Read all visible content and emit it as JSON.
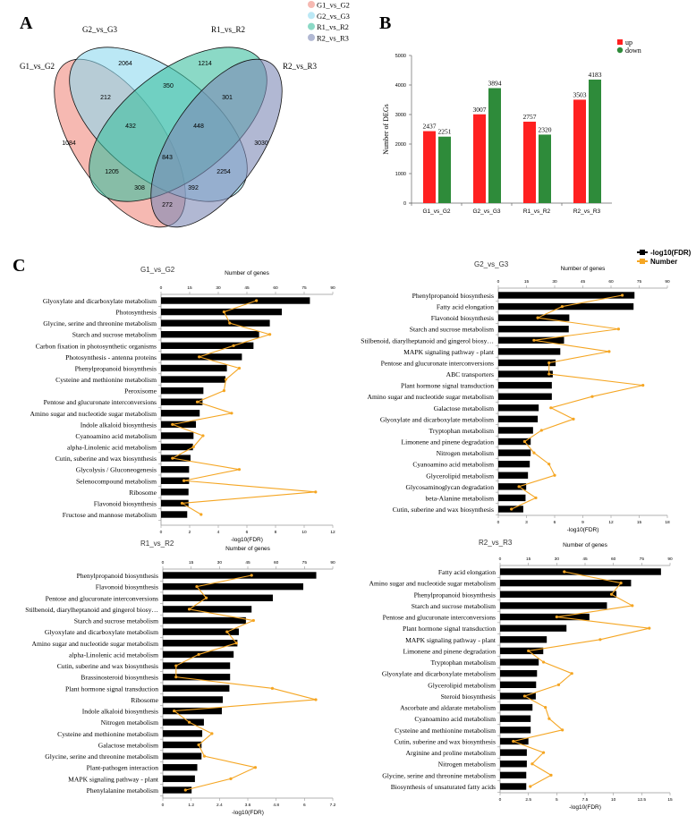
{
  "panel_labels": {
    "a": "A",
    "b": "B",
    "c": "C"
  },
  "legend_c": {
    "fdr": "-log10(FDR)",
    "number": "Number",
    "fdr_color": "#000000",
    "number_color": "#F5A623"
  },
  "chart_data": [
    {
      "type": "venn",
      "sets": [
        {
          "name": "G1_vs_G2",
          "color": "#F08A7E"
        },
        {
          "name": "G2_vs_G3",
          "color": "#8ED8EE"
        },
        {
          "name": "R1_vs_R2",
          "color": "#3EBFA0"
        },
        {
          "name": "R2_vs_R3",
          "color": "#7D88B5"
        }
      ],
      "regions": [
        {
          "sets": [
            "G2_vs_G3"
          ],
          "value": "2064"
        },
        {
          "sets": [
            "R1_vs_R2"
          ],
          "value": "1214"
        },
        {
          "sets": [
            "G1_vs_G2",
            "G2_vs_G3"
          ],
          "value": "212"
        },
        {
          "sets": [
            "G2_vs_G3",
            "R1_vs_R2"
          ],
          "value": "350"
        },
        {
          "sets": [
            "R1_vs_R2",
            "R2_vs_R3"
          ],
          "value": "301"
        },
        {
          "sets": [
            "G1_vs_G2",
            "G2_vs_G3",
            "R1_vs_R2"
          ],
          "value": "432"
        },
        {
          "sets": [
            "G2_vs_G3",
            "R1_vs_R2",
            "R2_vs_R3"
          ],
          "value": "448"
        },
        {
          "sets": [
            "G1_vs_G2"
          ],
          "value": "1084"
        },
        {
          "sets": [
            "G1_vs_G2",
            "G2_vs_G3",
            "R1_vs_R2",
            "R2_vs_R3"
          ],
          "value": "843"
        },
        {
          "sets": [
            "R2_vs_R3"
          ],
          "value": "3030"
        },
        {
          "sets": [
            "G1_vs_G2",
            "R1_vs_R2"
          ],
          "value": "1205"
        },
        {
          "sets": [
            "G2_vs_G3",
            "R2_vs_R3"
          ],
          "value": "2254"
        },
        {
          "sets": [
            "G1_vs_G2",
            "R1_vs_R2",
            "R2_vs_R3"
          ],
          "value": "308"
        },
        {
          "sets": [
            "G1_vs_G2",
            "G2_vs_G3",
            "R2_vs_R3"
          ],
          "value": "392"
        },
        {
          "sets": [
            "G1_vs_G2",
            "R2_vs_R3"
          ],
          "value": "272"
        }
      ]
    },
    {
      "type": "bar",
      "categories": [
        "G1_vs_G2",
        "G2_vs_G3",
        "R1_vs_R2",
        "R2_vs_R3"
      ],
      "series": [
        {
          "name": "up",
          "color": "#FF2020",
          "values": [
            2437,
            3007,
            2757,
            3503
          ]
        },
        {
          "name": "down",
          "color": "#2E8B3A",
          "values": [
            2251,
            3894,
            2320,
            4183
          ]
        }
      ],
      "ylabel": "Number of DEGs",
      "ylim": [
        0,
        5000
      ],
      "yticks": [
        "0",
        "1000",
        "2000",
        "3000",
        "4000",
        "5000"
      ],
      "legend": "top-right"
    },
    {
      "type": "bar+line",
      "title": "G1_vs_G2",
      "top_axis_label": "Number of genes",
      "xlabel": "-log10(FDR)",
      "fdr_ticks": [
        "0",
        "2",
        "4",
        "6",
        "8",
        "10",
        "12"
      ],
      "fdr_max": 12,
      "gene_ticks": [
        "0",
        "15",
        "30",
        "45",
        "60",
        "75",
        "90"
      ],
      "gene_max": 90,
      "categories": [
        "Glyoxylate and dicarboxylate metabolism",
        "Photosynthesis",
        "Glycine, serine and threonine metabolism",
        "Starch and sucrose metabolism",
        "Carbon fixation in photosynthetic organisms",
        "Photosynthesis - antenna proteins",
        "Phenylpropanoid biosynthesis",
        "Cysteine and methionine metabolism",
        "Peroxisome",
        "Pentose and glucuronate interconversions",
        "Amino sugar and nucleotide sugar metabolism",
        "Indole alkaloid biosynthesis",
        "Cyanoamino acid metabolism",
        "alpha-Linolenic acid metabolism",
        "Cutin, suberine and wax biosynthesis",
        "Glycolysis / Gluconeogenesis",
        "Selenocompound metabolism",
        "Ribosome",
        "Flavonoid biosynthesis",
        "Fructose and mannose metabolism"
      ],
      "fdr": [
        10.4,
        8.44,
        7.6,
        6.85,
        6.46,
        5.65,
        4.6,
        4.5,
        2.96,
        2.9,
        2.7,
        2.44,
        2.27,
        2.23,
        2.06,
        1.96,
        1.96,
        1.92,
        1.92,
        1.83
      ],
      "genes": [
        50,
        33,
        36,
        57,
        38,
        20,
        41,
        34,
        33,
        19,
        37,
        6,
        22,
        17,
        6,
        41,
        12,
        81,
        11,
        21
      ]
    },
    {
      "type": "bar+line",
      "title": "G2_vs_G3",
      "top_axis_label": "Number of genes",
      "xlabel": "-log10(FDR)",
      "fdr_ticks": [
        "0",
        "3",
        "6",
        "9",
        "12",
        "15",
        "18"
      ],
      "fdr_max": 18,
      "gene_ticks": [
        "0",
        "15",
        "30",
        "45",
        "60",
        "75",
        "90"
      ],
      "gene_max": 90,
      "categories": [
        "Phenylpropanoid biosynthesis",
        "Fatty acid elongation",
        "Flavonoid biosynthesis",
        "Starch and sucrose metabolism",
        "Stilbenoid, diarylheptanoid and gingerol biosy…",
        "MAPK signaling pathway - plant",
        "Pentose and glucuronate interconversions",
        "ABC transporters",
        "Plant hormone signal transduction",
        "Amino sugar and nucleotide sugar metabolism",
        "Galactose metabolism",
        "Glyoxylate and dicarboxylate metabolism",
        "Tryptophan metabolism",
        "Limonene and pinene degradation",
        "Nitrogen metabolism",
        "Cyanoamino acid metabolism",
        "Glycerolipid metabolism",
        "Glycosaminoglycan degradation",
        "beta-Alanine metabolism",
        "Cutin, suberine and wax biosynthesis"
      ],
      "fdr": [
        14.5,
        14.4,
        7.56,
        7.5,
        7.0,
        6.6,
        6.1,
        5.8,
        5.7,
        5.7,
        4.3,
        4.2,
        3.7,
        3.45,
        3.45,
        3.35,
        3.16,
        2.97,
        2.9,
        2.66
      ],
      "genes": [
        66,
        34,
        21,
        64,
        19,
        59,
        27,
        27,
        77,
        50,
        28,
        40,
        23,
        14,
        19,
        27,
        30,
        11,
        20,
        7
      ]
    },
    {
      "type": "bar+line",
      "title": "R1_vs_R2",
      "top_axis_label": "Number of genes",
      "xlabel": "-log10(FDR)",
      "fdr_ticks": [
        "0",
        "1.2",
        "2.4",
        "3.6",
        "4.8",
        "6",
        "7.2"
      ],
      "fdr_max": 7.2,
      "gene_ticks": [
        "0",
        "15",
        "30",
        "45",
        "60",
        "75",
        "90"
      ],
      "gene_max": 90,
      "categories": [
        "Phenylpropanoid biosynthesis",
        "Flavonoid biosynthesis",
        "Pentose and glucuronate interconversions",
        "Stilbenoid, diarylheptanoid and gingerol biosy…",
        "Starch and sucrose metabolism",
        "Glyoxylate and dicarboxylate metabolism",
        "Amino sugar and nucleotide sugar metabolism",
        "alpha-Linolenic acid metabolism",
        "Cutin, suberine and wax biosynthesis",
        "Brassinosteroid biosynthesis",
        "Plant hormone signal transduction",
        "Ribosome",
        "Indole alkaloid biosynthesis",
        "Nitrogen metabolism",
        "Cysteine and methionine metabolism",
        "Galactose metabolism",
        "Glycine, serine and threonine metabolism",
        "Plant-pathogen interaction",
        "MAPK signaling pathway - plant",
        "Phenylalanine metabolism"
      ],
      "fdr": [
        6.5,
        5.95,
        4.66,
        3.76,
        3.52,
        3.22,
        3.16,
        3.0,
        2.85,
        2.85,
        2.82,
        2.54,
        2.5,
        1.74,
        1.67,
        1.64,
        1.64,
        1.46,
        1.36,
        1.22
      ],
      "genes": [
        47,
        18,
        23,
        14,
        48,
        34,
        39,
        19,
        7,
        7,
        58,
        81,
        6,
        14,
        26,
        19,
        22,
        49,
        36,
        12
      ]
    },
    {
      "type": "bar+line",
      "title": "R2_vs_R3",
      "top_axis_label": "Number of genes",
      "xlabel": "-log10(FDR)",
      "fdr_ticks": [
        "0",
        "2.5",
        "5",
        "7.5",
        "10",
        "12.5",
        "15"
      ],
      "fdr_max": 15,
      "gene_ticks": [
        "0",
        "15",
        "30",
        "45",
        "60",
        "75",
        "90"
      ],
      "gene_max": 90,
      "categories": [
        "Fatty acid elongation",
        "Amino sugar and nucleotide sugar metabolism",
        "Phenylpropanoid biosynthesis",
        "Starch and sucrose metabolism",
        "Pentose and glucuronate interconversions",
        "Plant hormone signal transduction",
        "MAPK signaling pathway - plant",
        "Limonene and pinene degradation",
        "Tryptophan metabolism",
        "Glyoxylate and dicarboxylate metabolism",
        "Glycerolipid metabolism",
        "Steroid biosynthesis",
        "Ascorbate and aldarate metabolism",
        "Cyanoamino acid metabolism",
        "Cysteine and methionine metabolism",
        "Cutin, suberine and wax biosynthesis",
        "Arginine and proline metabolism",
        "Nitrogen metabolism",
        "Glycine, serine and threonine metabolism",
        "Biosynthesis of unsaturated fatty acids"
      ],
      "fdr": [
        14.2,
        11.56,
        10.27,
        9.43,
        7.88,
        5.86,
        4.12,
        3.81,
        3.41,
        3.26,
        3.18,
        3.15,
        2.86,
        2.7,
        2.7,
        2.5,
        2.36,
        2.36,
        2.31,
        2.31
      ],
      "genes": [
        34,
        64,
        59,
        70,
        30,
        79,
        53,
        15,
        23,
        38,
        31,
        13,
        24,
        26,
        33,
        7,
        23,
        17,
        27,
        16
      ]
    }
  ]
}
